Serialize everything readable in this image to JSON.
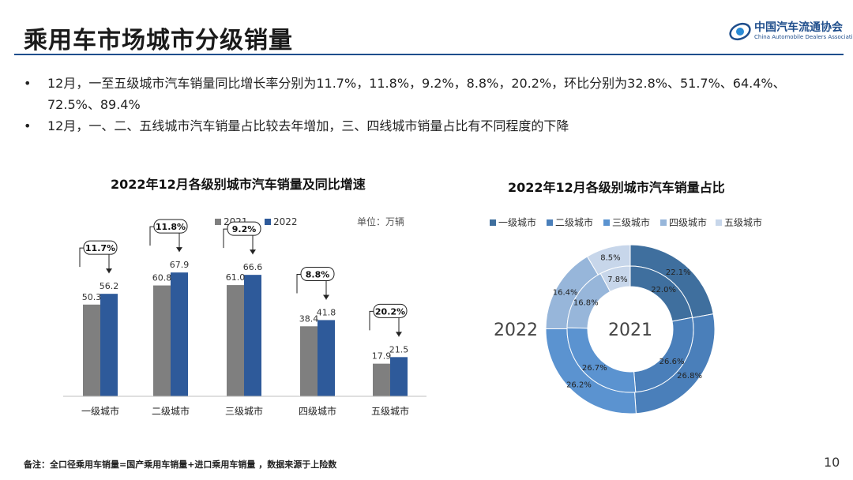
{
  "header": {
    "title": "乘用车市场城市分级销量",
    "logo_cn": "中国汽车流通协会",
    "logo_en": "China Automobile Dealers Association"
  },
  "bullets": [
    "12月，一至五级城市汽车销量同比增长率分别为11.7%，11.8%，9.2%，8.8%，20.2%，环比分别为32.8%、51.7%、64.4%、72.5%、89.4%",
    "12月，一、二、五线城市汽车销量占比较去年增加，三、四线城市销量占比有不同程度的下降"
  ],
  "bullet_marker": "•",
  "chart_data": [
    {
      "type": "bar",
      "title": "2022年12月各级别城市汽车销量及同比增速",
      "unit_label": "单位：万辆",
      "categories": [
        "一级城市",
        "二级城市",
        "三级城市",
        "四级城市",
        "五级城市"
      ],
      "series": [
        {
          "name": "2021",
          "values": [
            50.3,
            60.8,
            61.0,
            38.4,
            17.9
          ],
          "color": "#7f7f7f"
        },
        {
          "name": "2022",
          "values": [
            56.2,
            67.9,
            66.6,
            41.8,
            21.5
          ],
          "color": "#2e5a9a"
        }
      ],
      "growth_labels": [
        "11.7%",
        "11.8%",
        "9.2%",
        "8.8%",
        "20.2%"
      ],
      "ylim": [
        0,
        80
      ]
    },
    {
      "type": "pie",
      "subtype": "donut",
      "title": "2022年12月各级别城市汽车销量占比",
      "categories": [
        "一级城市",
        "二级城市",
        "三级城市",
        "四级城市",
        "五级城市"
      ],
      "colors": [
        "#3f6f9e",
        "#4a7fba",
        "#5b93d0",
        "#97b6da",
        "#c7d6ea"
      ],
      "series": [
        {
          "name": "2022",
          "ring": "outer",
          "values": [
            22.1,
            26.8,
            26.2,
            16.4,
            8.5
          ],
          "labels": [
            "22.1%",
            "26.8%",
            "26.2%",
            "16.4%",
            "8.5%"
          ]
        },
        {
          "name": "2021",
          "ring": "inner",
          "values": [
            22.0,
            26.6,
            26.7,
            16.8,
            7.8
          ],
          "labels": [
            "22.0%",
            "26.6%",
            "26.7%",
            "16.8%",
            "7.8%"
          ]
        }
      ]
    }
  ],
  "footnote": "备注：全口径乘用车销量=国产乘用车销量+进口乘用车销量 ，数据来源于上险数",
  "page_number": "10"
}
